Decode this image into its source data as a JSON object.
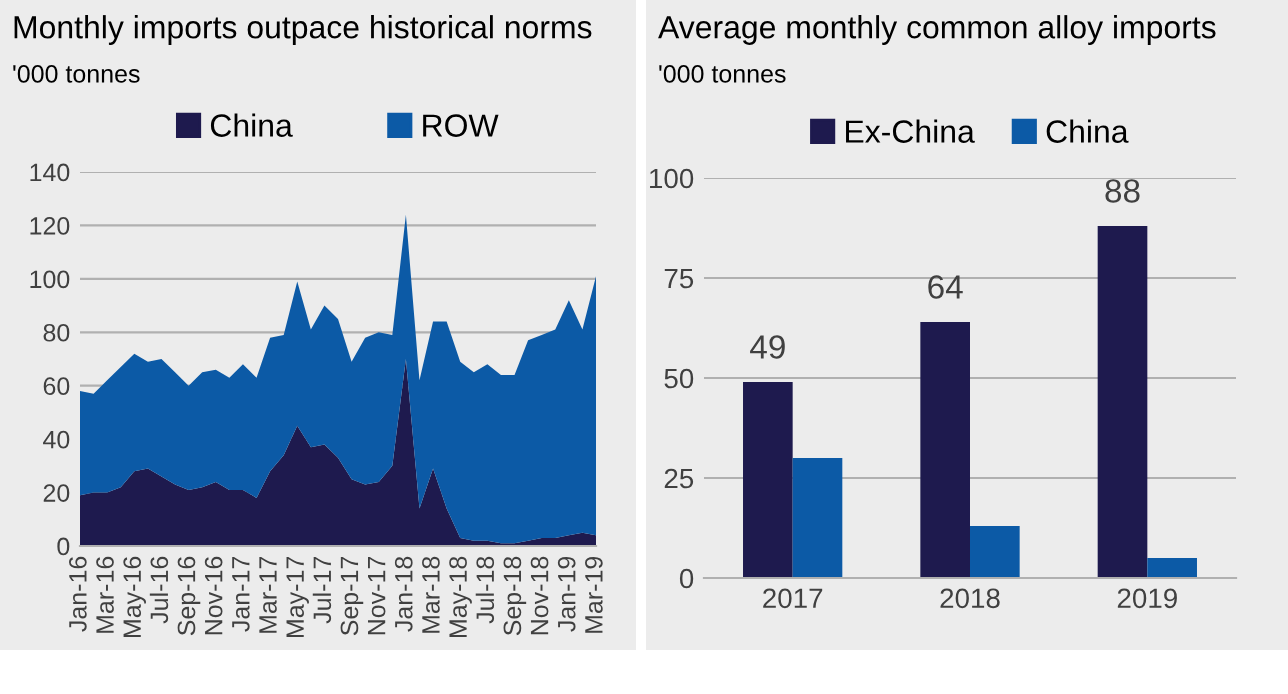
{
  "chart_data": [
    {
      "type": "area",
      "title": "Monthly imports outpace historical norms",
      "subtitle": "'000 tonnes",
      "stacked": true,
      "categories": [
        "Jan-16",
        null,
        "Mar-16",
        null,
        "May-16",
        null,
        "Jul-16",
        null,
        "Sep-16",
        null,
        "Nov-16",
        null,
        "Jan-17",
        null,
        "Mar-17",
        null,
        "May-17",
        null,
        "Jul-17",
        null,
        "Sep-17",
        null,
        "Nov-17",
        null,
        "Jan-18",
        null,
        "Mar-18",
        null,
        "May-18",
        null,
        "Jul-18",
        null,
        "Sep-18",
        null,
        "Nov-18",
        null,
        "Jan-19",
        null,
        "Mar-19"
      ],
      "series": [
        {
          "name": "China",
          "color": "#1e1a4e",
          "values": [
            19,
            20,
            20,
            22,
            28,
            29,
            26,
            23,
            21,
            22,
            24,
            21,
            21,
            18,
            28,
            34,
            45,
            37,
            38,
            33,
            25,
            23,
            24,
            30,
            70,
            14,
            29,
            14,
            3,
            2,
            2,
            1,
            1,
            2,
            3,
            3,
            4,
            5,
            4
          ]
        },
        {
          "name": "ROW",
          "color": "#0c5aa6",
          "values": [
            39,
            37,
            42,
            45,
            44,
            40,
            44,
            42,
            39,
            43,
            42,
            42,
            47,
            45,
            50,
            45,
            54,
            44,
            52,
            52,
            44,
            55,
            56,
            49,
            54,
            48,
            55,
            70,
            66,
            63,
            66,
            63,
            63,
            75,
            76,
            78,
            88,
            76,
            97
          ]
        }
      ],
      "ylim": [
        0,
        140
      ],
      "yticks": [
        0,
        20,
        40,
        60,
        80,
        100,
        120,
        140
      ],
      "grid": "y",
      "legend": "top"
    },
    {
      "type": "bar",
      "title": "Average monthly common alloy imports",
      "subtitle": "'000 tonnes",
      "categories": [
        "2017",
        "2018",
        "2019"
      ],
      "series": [
        {
          "name": "Ex-China",
          "color": "#1e1a4e",
          "values": [
            49,
            64,
            88
          ],
          "value_labels": [
            "49",
            "64",
            "88"
          ]
        },
        {
          "name": "China",
          "color": "#0c5aa6",
          "values": [
            30,
            13,
            5
          ]
        }
      ],
      "ylim": [
        0,
        100
      ],
      "yticks": [
        0,
        25,
        50,
        75,
        100
      ],
      "grid": "y",
      "legend": "top"
    }
  ]
}
